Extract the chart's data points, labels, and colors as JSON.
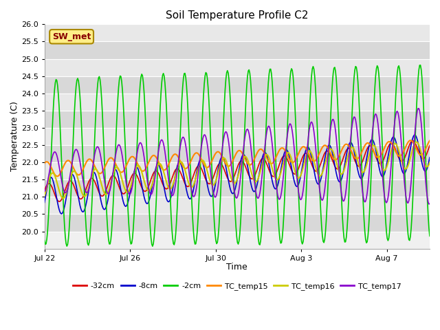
{
  "title": "Soil Temperature Profile C2",
  "xlabel": "Time",
  "ylabel": "Temperature (C)",
  "ylim": [
    19.5,
    26.0
  ],
  "yticks": [
    20.0,
    20.5,
    21.0,
    21.5,
    22.0,
    22.5,
    23.0,
    23.5,
    24.0,
    24.5,
    25.0,
    25.5,
    26.0
  ],
  "xtick_labels": [
    "Jul 22",
    "Jul 26",
    "Jul 30",
    "Aug 3",
    "Aug 7"
  ],
  "xtick_days": [
    0,
    4,
    8,
    12,
    16
  ],
  "series": [
    {
      "label": "-32cm",
      "color": "#dd0000",
      "lw": 1.2
    },
    {
      "label": "-8cm",
      "color": "#0000cc",
      "lw": 1.2
    },
    {
      "label": "-2cm",
      "color": "#00cc00",
      "lw": 1.2
    },
    {
      "label": "TC_temp15",
      "color": "#ff8800",
      "lw": 1.5
    },
    {
      "label": "TC_temp16",
      "color": "#cccc00",
      "lw": 1.5
    },
    {
      "label": "TC_temp17",
      "color": "#8800cc",
      "lw": 1.2
    }
  ],
  "sw_met_label": "SW_met",
  "sw_met_bg": "#ffee88",
  "sw_met_edge": "#aa8800",
  "sw_met_fc": "#880000",
  "fig_bg": "#ffffff",
  "plot_bg": "#f0f0f0",
  "band_light": "#e8e8e8",
  "band_dark": "#d8d8d8",
  "n_points": 500,
  "total_days": 18.0,
  "period": 1.0
}
